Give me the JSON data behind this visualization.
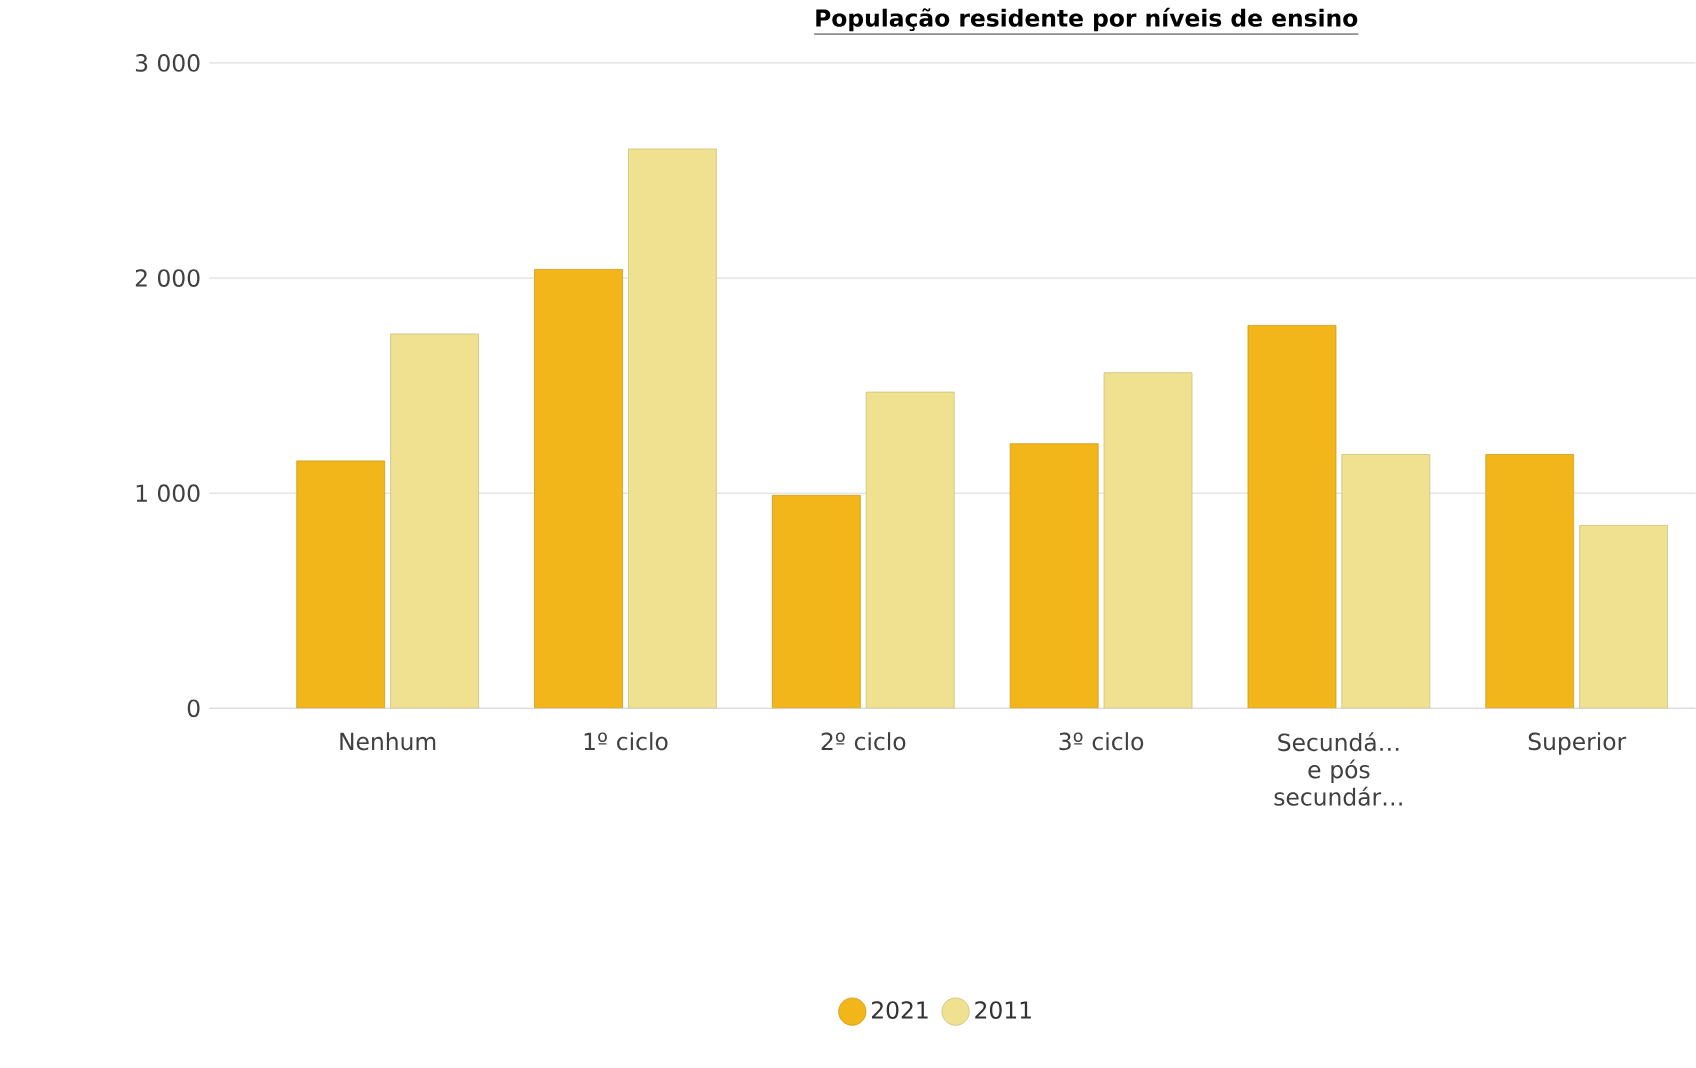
{
  "chart_data": {
    "type": "bar",
    "title": "População residente por níveis de ensino",
    "categories": [
      "Nenhum",
      "1º ciclo",
      "2º ciclo",
      "3º ciclo",
      "Secundá… e pós secundár…",
      "Superior"
    ],
    "series": [
      {
        "name": "2021",
        "color": "#f2b51a",
        "values": [
          1150,
          2040,
          990,
          1230,
          1780,
          1180
        ]
      },
      {
        "name": "2011",
        "color": "#f0e190",
        "values": [
          1740,
          2600,
          1470,
          1560,
          1180,
          850
        ]
      }
    ],
    "ylim": [
      0,
      3000
    ],
    "yticks": [
      0,
      {
        "value": 1000,
        "label": "1 000"
      },
      {
        "value": 2000,
        "label": "2 000"
      },
      {
        "value": 3000,
        "label": "3 000"
      }
    ],
    "grid": "y",
    "legend": "bottom"
  }
}
